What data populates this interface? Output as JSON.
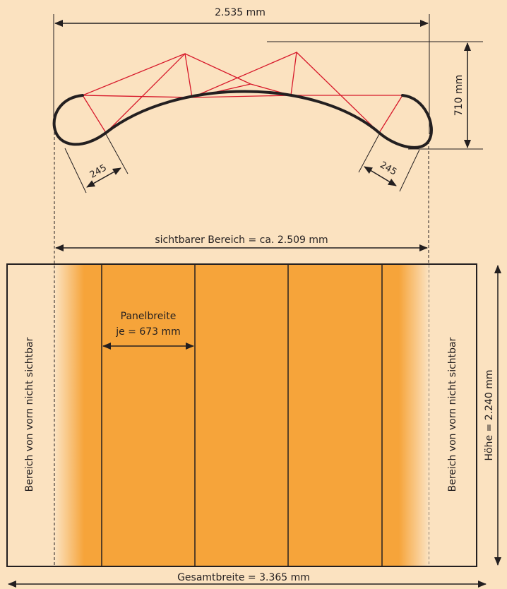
{
  "top_view": {
    "overall_width_label": "2.535 mm",
    "depth_label": "710 mm",
    "left_curve_label": "245",
    "right_curve_label": "245"
  },
  "front_view": {
    "visible_area_label": "sichtbarer Bereich = ca. 2.509 mm",
    "panel_width_line1": "Panelbreite",
    "panel_width_line2": "je = 673 mm",
    "left_side_label": "Bereich von vorn nicht sichtbar",
    "right_side_label": "Bereich von vorn nicht sichtbar",
    "height_label": "Höhe = 2.240 mm",
    "total_width_label": "Gesamtbreite = 3.365 mm"
  },
  "colors": {
    "background": "#fbe2c0",
    "panel_fill": "#f6a43a",
    "truss": "#d7182a",
    "outline": "#231f20"
  }
}
